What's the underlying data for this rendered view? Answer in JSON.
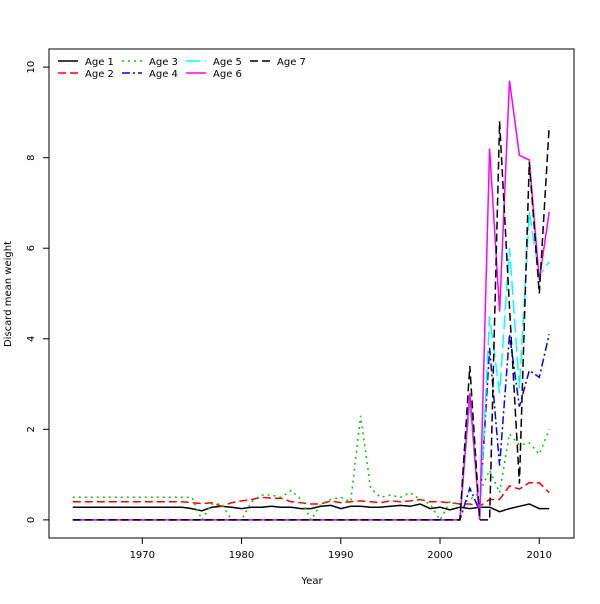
{
  "chart_data": {
    "type": "line",
    "title": "",
    "xlabel": "Year",
    "ylabel": "Discard mean weight",
    "xlim": [
      1960.6,
      2013.5
    ],
    "ylim": [
      -0.4,
      10.4
    ],
    "xticks": [
      1970,
      1980,
      1990,
      2000,
      2010
    ],
    "yticks": [
      0,
      2,
      4,
      6,
      8,
      10
    ],
    "legend_position": "top-left",
    "x": [
      1963,
      1964,
      1965,
      1966,
      1967,
      1968,
      1969,
      1970,
      1971,
      1972,
      1973,
      1974,
      1975,
      1976,
      1977,
      1978,
      1979,
      1980,
      1981,
      1982,
      1983,
      1984,
      1985,
      1986,
      1987,
      1988,
      1989,
      1990,
      1991,
      1992,
      1993,
      1994,
      1995,
      1996,
      1997,
      1998,
      1999,
      2000,
      2001,
      2002,
      2003,
      2004,
      2005,
      2006,
      2007,
      2008,
      2009,
      2010,
      2011
    ],
    "series": [
      {
        "name": "Age 1",
        "color": "#000000",
        "dash": "",
        "values": [
          0.28,
          0.28,
          0.28,
          0.28,
          0.28,
          0.28,
          0.28,
          0.28,
          0.28,
          0.28,
          0.28,
          0.28,
          0.25,
          0.2,
          0.28,
          0.3,
          0.28,
          0.25,
          0.28,
          0.28,
          0.3,
          0.28,
          0.28,
          0.25,
          0.25,
          0.3,
          0.32,
          0.25,
          0.3,
          0.3,
          0.28,
          0.28,
          0.3,
          0.32,
          0.3,
          0.35,
          0.25,
          0.28,
          0.22,
          0.28,
          0.25,
          0.28,
          0.28,
          0.18,
          0.25,
          0.3,
          0.35,
          0.25,
          0.25
        ]
      },
      {
        "name": "Age 2",
        "color": "#ff0000",
        "dash": "8,4",
        "values": [
          0.4,
          0.4,
          0.4,
          0.4,
          0.4,
          0.4,
          0.4,
          0.4,
          0.4,
          0.4,
          0.4,
          0.4,
          0.38,
          0.36,
          0.38,
          0.3,
          0.38,
          0.42,
          0.45,
          0.5,
          0.48,
          0.48,
          0.4,
          0.38,
          0.35,
          0.35,
          0.42,
          0.38,
          0.4,
          0.42,
          0.4,
          0.38,
          0.42,
          0.4,
          0.42,
          0.45,
          0.4,
          0.4,
          0.38,
          0.35,
          0.35,
          0.3,
          0.45,
          0.45,
          0.75,
          0.68,
          0.82,
          0.82,
          0.6
        ]
      },
      {
        "name": "Age 3",
        "color": "#00cd00",
        "dash": "2,4",
        "values": [
          0.5,
          0.5,
          0.5,
          0.5,
          0.5,
          0.5,
          0.5,
          0.5,
          0.5,
          0.5,
          0.5,
          0.5,
          0.5,
          0,
          0.35,
          0.35,
          0,
          0,
          0.4,
          0.55,
          0.55,
          0.5,
          0.65,
          0.45,
          0,
          0.35,
          0.45,
          0.5,
          0.4,
          2.3,
          0.7,
          0.5,
          0.55,
          0.5,
          0.6,
          0.45,
          0.35,
          0,
          0.4,
          0.35,
          0.45,
          0.6,
          1.1,
          0.6,
          1.9,
          1.65,
          1.7,
          1.45,
          2.0
        ]
      },
      {
        "name": "Age 4",
        "color": "#0000ff",
        "dash": "8,3,2,3",
        "values": [
          0,
          0,
          0,
          0,
          0,
          0,
          0,
          0,
          0,
          0,
          0,
          0,
          0,
          0,
          0,
          0,
          0,
          0,
          0,
          0,
          0,
          0,
          0,
          0,
          0,
          0,
          0,
          0,
          0,
          0,
          0,
          0,
          0,
          0,
          0,
          0,
          0,
          0,
          0,
          0,
          0.7,
          0.2,
          3.8,
          1.2,
          4.1,
          2.5,
          3.3,
          3.15,
          4.1
        ]
      },
      {
        "name": "Age 5",
        "color": "#00ffff",
        "dash": "14,5",
        "values": [
          0,
          0,
          0,
          0,
          0,
          0,
          0,
          0,
          0,
          0,
          0,
          0,
          0,
          0,
          0,
          0,
          0,
          0,
          0,
          0,
          0,
          0,
          0,
          0,
          0,
          0,
          0,
          0,
          0,
          0,
          0,
          0,
          0,
          0,
          0,
          0,
          0,
          0,
          0,
          0,
          2.6,
          0,
          4.5,
          2.8,
          6.0,
          2.9,
          6.8,
          5.4,
          5.7
        ]
      },
      {
        "name": "Age 6",
        "color": "#ff00ff",
        "dash": "",
        "values": [
          0,
          0,
          0,
          0,
          0,
          0,
          0,
          0,
          0,
          0,
          0,
          0,
          0,
          0,
          0,
          0,
          0,
          0,
          0,
          0,
          0,
          0,
          0,
          0,
          0,
          0,
          0,
          0,
          0,
          0,
          0,
          0,
          0,
          0,
          0,
          0,
          0,
          0,
          0,
          0,
          2.8,
          0,
          8.2,
          4.6,
          9.7,
          8.05,
          7.95,
          5.3,
          6.8
        ]
      },
      {
        "name": "Age 7",
        "color": "#000000",
        "dash": "8,4",
        "values": [
          0,
          0,
          0,
          0,
          0,
          0,
          0,
          0,
          0,
          0,
          0,
          0,
          0,
          0,
          0,
          0,
          0,
          0,
          0,
          0,
          0,
          0,
          0,
          0,
          0,
          0,
          0,
          0,
          0,
          0,
          0,
          0,
          0,
          0,
          0,
          0,
          0,
          0,
          0,
          0,
          3.4,
          0,
          0,
          8.8,
          4.7,
          0.8,
          7.9,
          5.0,
          8.7
        ]
      }
    ]
  }
}
